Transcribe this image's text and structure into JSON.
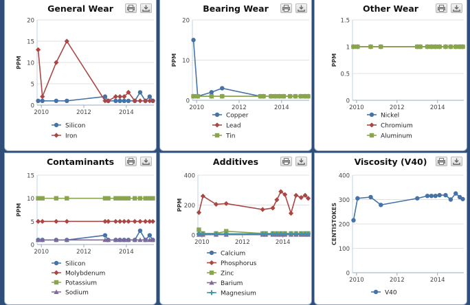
{
  "charts": [
    {
      "title": "General Wear",
      "chart_data": {
        "type": "line",
        "ylabel": "PPM",
        "ylim": [
          0,
          20
        ],
        "yticks": [
          0,
          5,
          10,
          15,
          20
        ],
        "xlim": [
          2009.8,
          2015.3
        ],
        "xticks": [
          2010,
          2012,
          2014
        ],
        "series": [
          {
            "name": "Silicon",
            "color": "#4572a7",
            "marker": "circle",
            "x": [
              2009.85,
              2010.05,
              2010.7,
              2011.2,
              2013.0,
              2013.15,
              2013.5,
              2013.7,
              2013.9,
              2014.1,
              2014.4,
              2014.65,
              2014.9,
              2015.1,
              2015.25
            ],
            "y": [
              1,
              1,
              1,
              1,
              2,
              1,
              1,
              1,
              1,
              1,
              1,
              3,
              1,
              2,
              1
            ]
          },
          {
            "name": "Iron",
            "color": "#aa4643",
            "marker": "diamond",
            "x": [
              2009.85,
              2010.05,
              2010.7,
              2011.2,
              2013.0,
              2013.15,
              2013.5,
              2013.7,
              2013.9,
              2014.1,
              2014.4,
              2014.65,
              2014.9,
              2015.1,
              2015.25
            ],
            "y": [
              13,
              2,
              10,
              15,
              1,
              1,
              2,
              2,
              2,
              3,
              1,
              1,
              1,
              1,
              1
            ]
          }
        ]
      }
    },
    {
      "title": "Bearing Wear",
      "chart_data": {
        "type": "line",
        "ylabel": "PPM",
        "ylim": [
          0,
          20
        ],
        "yticks": [
          0,
          10,
          20
        ],
        "xlim": [
          2009.8,
          2015.3
        ],
        "xticks": [
          2010,
          2012,
          2014
        ],
        "series": [
          {
            "name": "Copper",
            "color": "#4572a7",
            "marker": "circle",
            "x": [
              2009.85,
              2010.05,
              2010.7,
              2011.2,
              2013.0,
              2013.15,
              2013.5,
              2013.7,
              2013.9,
              2014.1,
              2014.4,
              2014.65,
              2014.9,
              2015.1,
              2015.25
            ],
            "y": [
              15,
              1,
              2,
              3,
              1,
              1,
              1,
              1,
              1,
              1,
              1,
              1,
              1,
              1,
              1
            ]
          },
          {
            "name": "Lead",
            "color": "#aa4643",
            "marker": "diamond",
            "x": [
              2009.85,
              2010.05,
              2010.7,
              2011.2,
              2013.0,
              2013.15,
              2013.5,
              2013.7,
              2013.9,
              2014.1,
              2014.4,
              2014.65,
              2014.9,
              2015.1,
              2015.25
            ],
            "y": [
              1,
              1,
              1,
              1,
              1,
              1,
              1,
              1,
              1,
              1,
              1,
              1,
              1,
              1,
              1
            ]
          },
          {
            "name": "Tin",
            "color": "#89a54e",
            "marker": "square",
            "x": [
              2009.85,
              2010.05,
              2010.7,
              2011.2,
              2013.0,
              2013.15,
              2013.5,
              2013.7,
              2013.9,
              2014.1,
              2014.4,
              2014.65,
              2014.9,
              2015.1,
              2015.25
            ],
            "y": [
              1,
              1,
              1,
              1,
              1,
              1,
              1,
              1,
              1,
              1,
              1,
              1,
              1,
              1,
              1
            ]
          }
        ]
      }
    },
    {
      "title": "Other Wear",
      "chart_data": {
        "type": "line",
        "ylabel": "PPM",
        "ylim": [
          0,
          1.5
        ],
        "yticks": [
          0,
          0.5,
          1,
          1.5
        ],
        "ytick_labels": [
          "0",
          "0.5",
          "1",
          "1.5"
        ],
        "xlim": [
          2009.8,
          2015.3
        ],
        "xticks": [
          2010,
          2012,
          2014
        ],
        "series": [
          {
            "name": "Nickel",
            "color": "#4572a7",
            "marker": "circle",
            "x": [
              2009.85,
              2010.05,
              2010.7,
              2011.2,
              2013.0,
              2013.15,
              2013.5,
              2013.7,
              2013.9,
              2014.1,
              2014.4,
              2014.65,
              2014.9,
              2015.1,
              2015.25
            ],
            "y": [
              1,
              1,
              1,
              1,
              1,
              1,
              1,
              1,
              1,
              1,
              1,
              1,
              1,
              1,
              1
            ]
          },
          {
            "name": "Chromium",
            "color": "#aa4643",
            "marker": "diamond",
            "x": [
              2009.85,
              2010.05,
              2010.7,
              2011.2,
              2013.0,
              2013.15,
              2013.5,
              2013.7,
              2013.9,
              2014.1,
              2014.4,
              2014.65,
              2014.9,
              2015.1,
              2015.25
            ],
            "y": [
              1,
              1,
              1,
              1,
              1,
              1,
              1,
              1,
              1,
              1,
              1,
              1,
              1,
              1,
              1
            ]
          },
          {
            "name": "Aluminum",
            "color": "#89a54e",
            "marker": "square",
            "x": [
              2009.85,
              2010.05,
              2010.7,
              2011.2,
              2013.0,
              2013.15,
              2013.5,
              2013.7,
              2013.9,
              2014.1,
              2014.4,
              2014.65,
              2014.9,
              2015.1,
              2015.25
            ],
            "y": [
              1,
              1,
              1,
              1,
              1,
              1,
              1,
              1,
              1,
              1,
              1,
              1,
              1,
              1,
              1
            ]
          }
        ]
      }
    },
    {
      "title": "Contaminants",
      "chart_data": {
        "type": "line",
        "ylabel": "PPM",
        "ylim": [
          0,
          15
        ],
        "yticks": [
          0,
          5,
          10,
          15
        ],
        "xlim": [
          2009.8,
          2015.3
        ],
        "xticks": [
          2010,
          2012,
          2014
        ],
        "series": [
          {
            "name": "Silicon",
            "color": "#4572a7",
            "marker": "circle",
            "x": [
              2009.85,
              2010.05,
              2010.7,
              2011.2,
              2013.0,
              2013.15,
              2013.5,
              2013.7,
              2013.9,
              2014.1,
              2014.4,
              2014.65,
              2014.9,
              2015.1,
              2015.25
            ],
            "y": [
              1,
              1,
              1,
              1,
              2,
              1,
              1,
              1,
              1,
              1,
              1,
              3,
              1,
              2,
              1
            ]
          },
          {
            "name": "Molybdenum",
            "color": "#aa4643",
            "marker": "diamond",
            "x": [
              2009.85,
              2010.05,
              2010.7,
              2011.2,
              2013.0,
              2013.15,
              2013.5,
              2013.7,
              2013.9,
              2014.1,
              2014.4,
              2014.65,
              2014.9,
              2015.1,
              2015.25
            ],
            "y": [
              5,
              5,
              5,
              5,
              5,
              5,
              5,
              5,
              5,
              5,
              5,
              5,
              5,
              5,
              5
            ]
          },
          {
            "name": "Potassium",
            "color": "#89a54e",
            "marker": "square",
            "x": [
              2009.85,
              2010.05,
              2010.7,
              2011.2,
              2013.0,
              2013.15,
              2013.5,
              2013.7,
              2013.9,
              2014.1,
              2014.4,
              2014.65,
              2014.9,
              2015.1,
              2015.25
            ],
            "y": [
              10,
              10,
              10,
              10,
              10,
              10,
              10,
              10,
              10,
              10,
              10,
              10,
              10,
              10,
              10
            ]
          },
          {
            "name": "Sodium",
            "color": "#80699b",
            "marker": "triangle",
            "x": [
              2009.85,
              2010.05,
              2010.7,
              2011.2,
              2013.0,
              2013.15,
              2013.5,
              2013.7,
              2013.9,
              2014.1,
              2014.4,
              2014.65,
              2014.9,
              2015.1,
              2015.25
            ],
            "y": [
              1,
              1,
              1,
              1,
              1,
              1,
              1,
              1,
              1,
              1,
              1,
              1,
              1,
              1,
              1
            ]
          }
        ]
      }
    },
    {
      "title": "Additives",
      "chart_data": {
        "type": "line",
        "ylabel": "PPM",
        "ylim": [
          0,
          400
        ],
        "yticks": [
          0,
          200,
          400
        ],
        "xlim": [
          2009.8,
          2015.3
        ],
        "xticks": [
          2010,
          2012,
          2014
        ],
        "series": [
          {
            "name": "Calcium",
            "color": "#4572a7",
            "marker": "circle",
            "x": [
              2009.85,
              2010.05,
              2010.7,
              2011.2,
              2013.0,
              2013.15,
              2013.5,
              2013.7,
              2013.9,
              2014.1,
              2014.4,
              2014.65,
              2014.9,
              2015.1,
              2015.25
            ],
            "y": [
              5,
              5,
              5,
              5,
              5,
              5,
              5,
              5,
              5,
              5,
              5,
              5,
              5,
              5,
              5
            ]
          },
          {
            "name": "Phosphorus",
            "color": "#aa4643",
            "marker": "diamond",
            "x": [
              2009.85,
              2010.05,
              2010.7,
              2011.2,
              2013.0,
              2013.5,
              2013.7,
              2013.9,
              2014.1,
              2014.4,
              2014.65,
              2014.9,
              2015.1,
              2015.25
            ],
            "y": [
              150,
              260,
              205,
              210,
              170,
              180,
              235,
              290,
              270,
              145,
              265,
              250,
              265,
              245
            ]
          },
          {
            "name": "Zinc",
            "color": "#89a54e",
            "marker": "square",
            "x": [
              2009.85,
              2010.05,
              2010.7,
              2011.2,
              2013.0,
              2013.15,
              2013.5,
              2013.7,
              2013.9,
              2014.1,
              2014.4,
              2014.65,
              2014.9,
              2015.1,
              2015.25
            ],
            "y": [
              35,
              10,
              10,
              25,
              10,
              10,
              10,
              10,
              10,
              10,
              10,
              10,
              10,
              10,
              10
            ]
          },
          {
            "name": "Barium",
            "color": "#80699b",
            "marker": "triangle",
            "x": [
              2009.85,
              2010.05,
              2010.7,
              2011.2,
              2013.0,
              2013.15,
              2013.5,
              2013.7,
              2013.9,
              2014.1,
              2014.4,
              2014.65,
              2014.9,
              2015.1,
              2015.25
            ],
            "y": [
              2,
              2,
              2,
              2,
              2,
              2,
              2,
              2,
              2,
              2,
              2,
              2,
              2,
              2,
              2
            ]
          },
          {
            "name": "Magnesium",
            "color": "#3d96ae",
            "marker": "cross",
            "x": [
              2009.85,
              2010.05,
              2010.7,
              2011.2,
              2013.0,
              2013.15,
              2013.5,
              2013.7,
              2013.9,
              2014.1,
              2014.4,
              2014.65,
              2014.9,
              2015.1,
              2015.25
            ],
            "y": [
              8,
              8,
              8,
              8,
              8,
              8,
              8,
              8,
              8,
              8,
              8,
              8,
              8,
              8,
              8
            ]
          }
        ]
      }
    },
    {
      "title": "Viscosity (V40)",
      "chart_data": {
        "type": "line",
        "ylabel": "CENTISTOKES",
        "ylim": [
          0,
          400
        ],
        "yticks": [
          0,
          100,
          200,
          300,
          400
        ],
        "xlim": [
          2009.8,
          2015.3
        ],
        "xticks": [
          2010,
          2012,
          2014
        ],
        "series": [
          {
            "name": "V40",
            "color": "#4572a7",
            "marker": "circle",
            "x": [
              2009.85,
              2010.05,
              2010.7,
              2011.2,
              2013.0,
              2013.5,
              2013.7,
              2013.9,
              2014.1,
              2014.4,
              2014.65,
              2014.9,
              2015.1,
              2015.25
            ],
            "y": [
              215,
              305,
              310,
              278,
              305,
              315,
              315,
              315,
              318,
              318,
              300,
              325,
              310,
              302
            ]
          }
        ]
      }
    }
  ]
}
